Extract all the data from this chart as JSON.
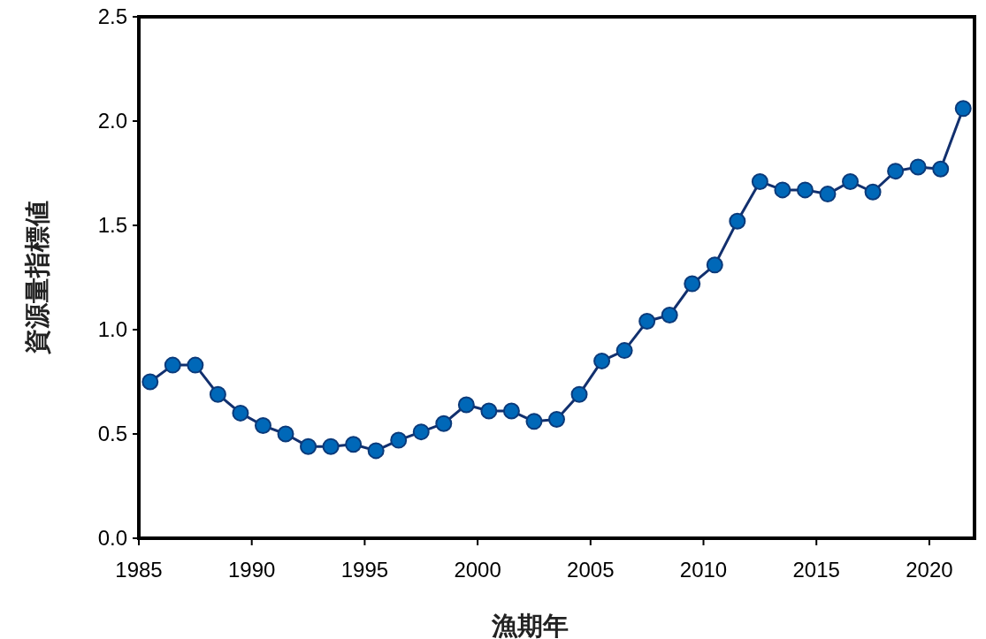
{
  "chart_data": {
    "type": "line",
    "xlabel": "漁期年",
    "ylabel": "資源量指標値",
    "x": [
      1985.5,
      1986.5,
      1987.5,
      1988.5,
      1989.5,
      1990.5,
      1991.5,
      1992.5,
      1993.5,
      1994.5,
      1995.5,
      1996.5,
      1997.5,
      1998.5,
      1999.5,
      2000.5,
      2001.5,
      2002.5,
      2003.5,
      2004.5,
      2005.5,
      2006.5,
      2007.5,
      2008.5,
      2009.5,
      2010.5,
      2011.5,
      2012.5,
      2013.5,
      2014.5,
      2015.5,
      2016.5,
      2017.5,
      2018.5,
      2019.5,
      2020.5,
      2021.5
    ],
    "values": [
      0.75,
      0.83,
      0.83,
      0.69,
      0.6,
      0.54,
      0.5,
      0.44,
      0.44,
      0.45,
      0.42,
      0.47,
      0.51,
      0.55,
      0.64,
      0.61,
      0.61,
      0.56,
      0.57,
      0.69,
      0.85,
      0.9,
      1.04,
      1.07,
      1.22,
      1.31,
      1.52,
      1.71,
      1.67,
      1.67,
      1.65,
      1.71,
      1.66,
      1.76,
      1.78,
      1.77,
      2.06
    ],
    "color": "#0068b8",
    "marker": "circle",
    "line_style": "solid",
    "xlim": [
      1985,
      2022
    ],
    "ylim": [
      0,
      2.5
    ],
    "xticks": [
      1985,
      1990,
      1995,
      2000,
      2005,
      2010,
      2015,
      2020
    ],
    "yticks": [
      {
        "value": 0,
        "label": "0.0"
      },
      {
        "value": 0.5,
        "label": "0.5"
      },
      {
        "value": 1,
        "label": "1.0"
      },
      {
        "value": 1.5,
        "label": "1.5"
      },
      {
        "value": 2,
        "label": "2.0"
      },
      {
        "value": 2.5,
        "label": "2.5"
      }
    ]
  }
}
